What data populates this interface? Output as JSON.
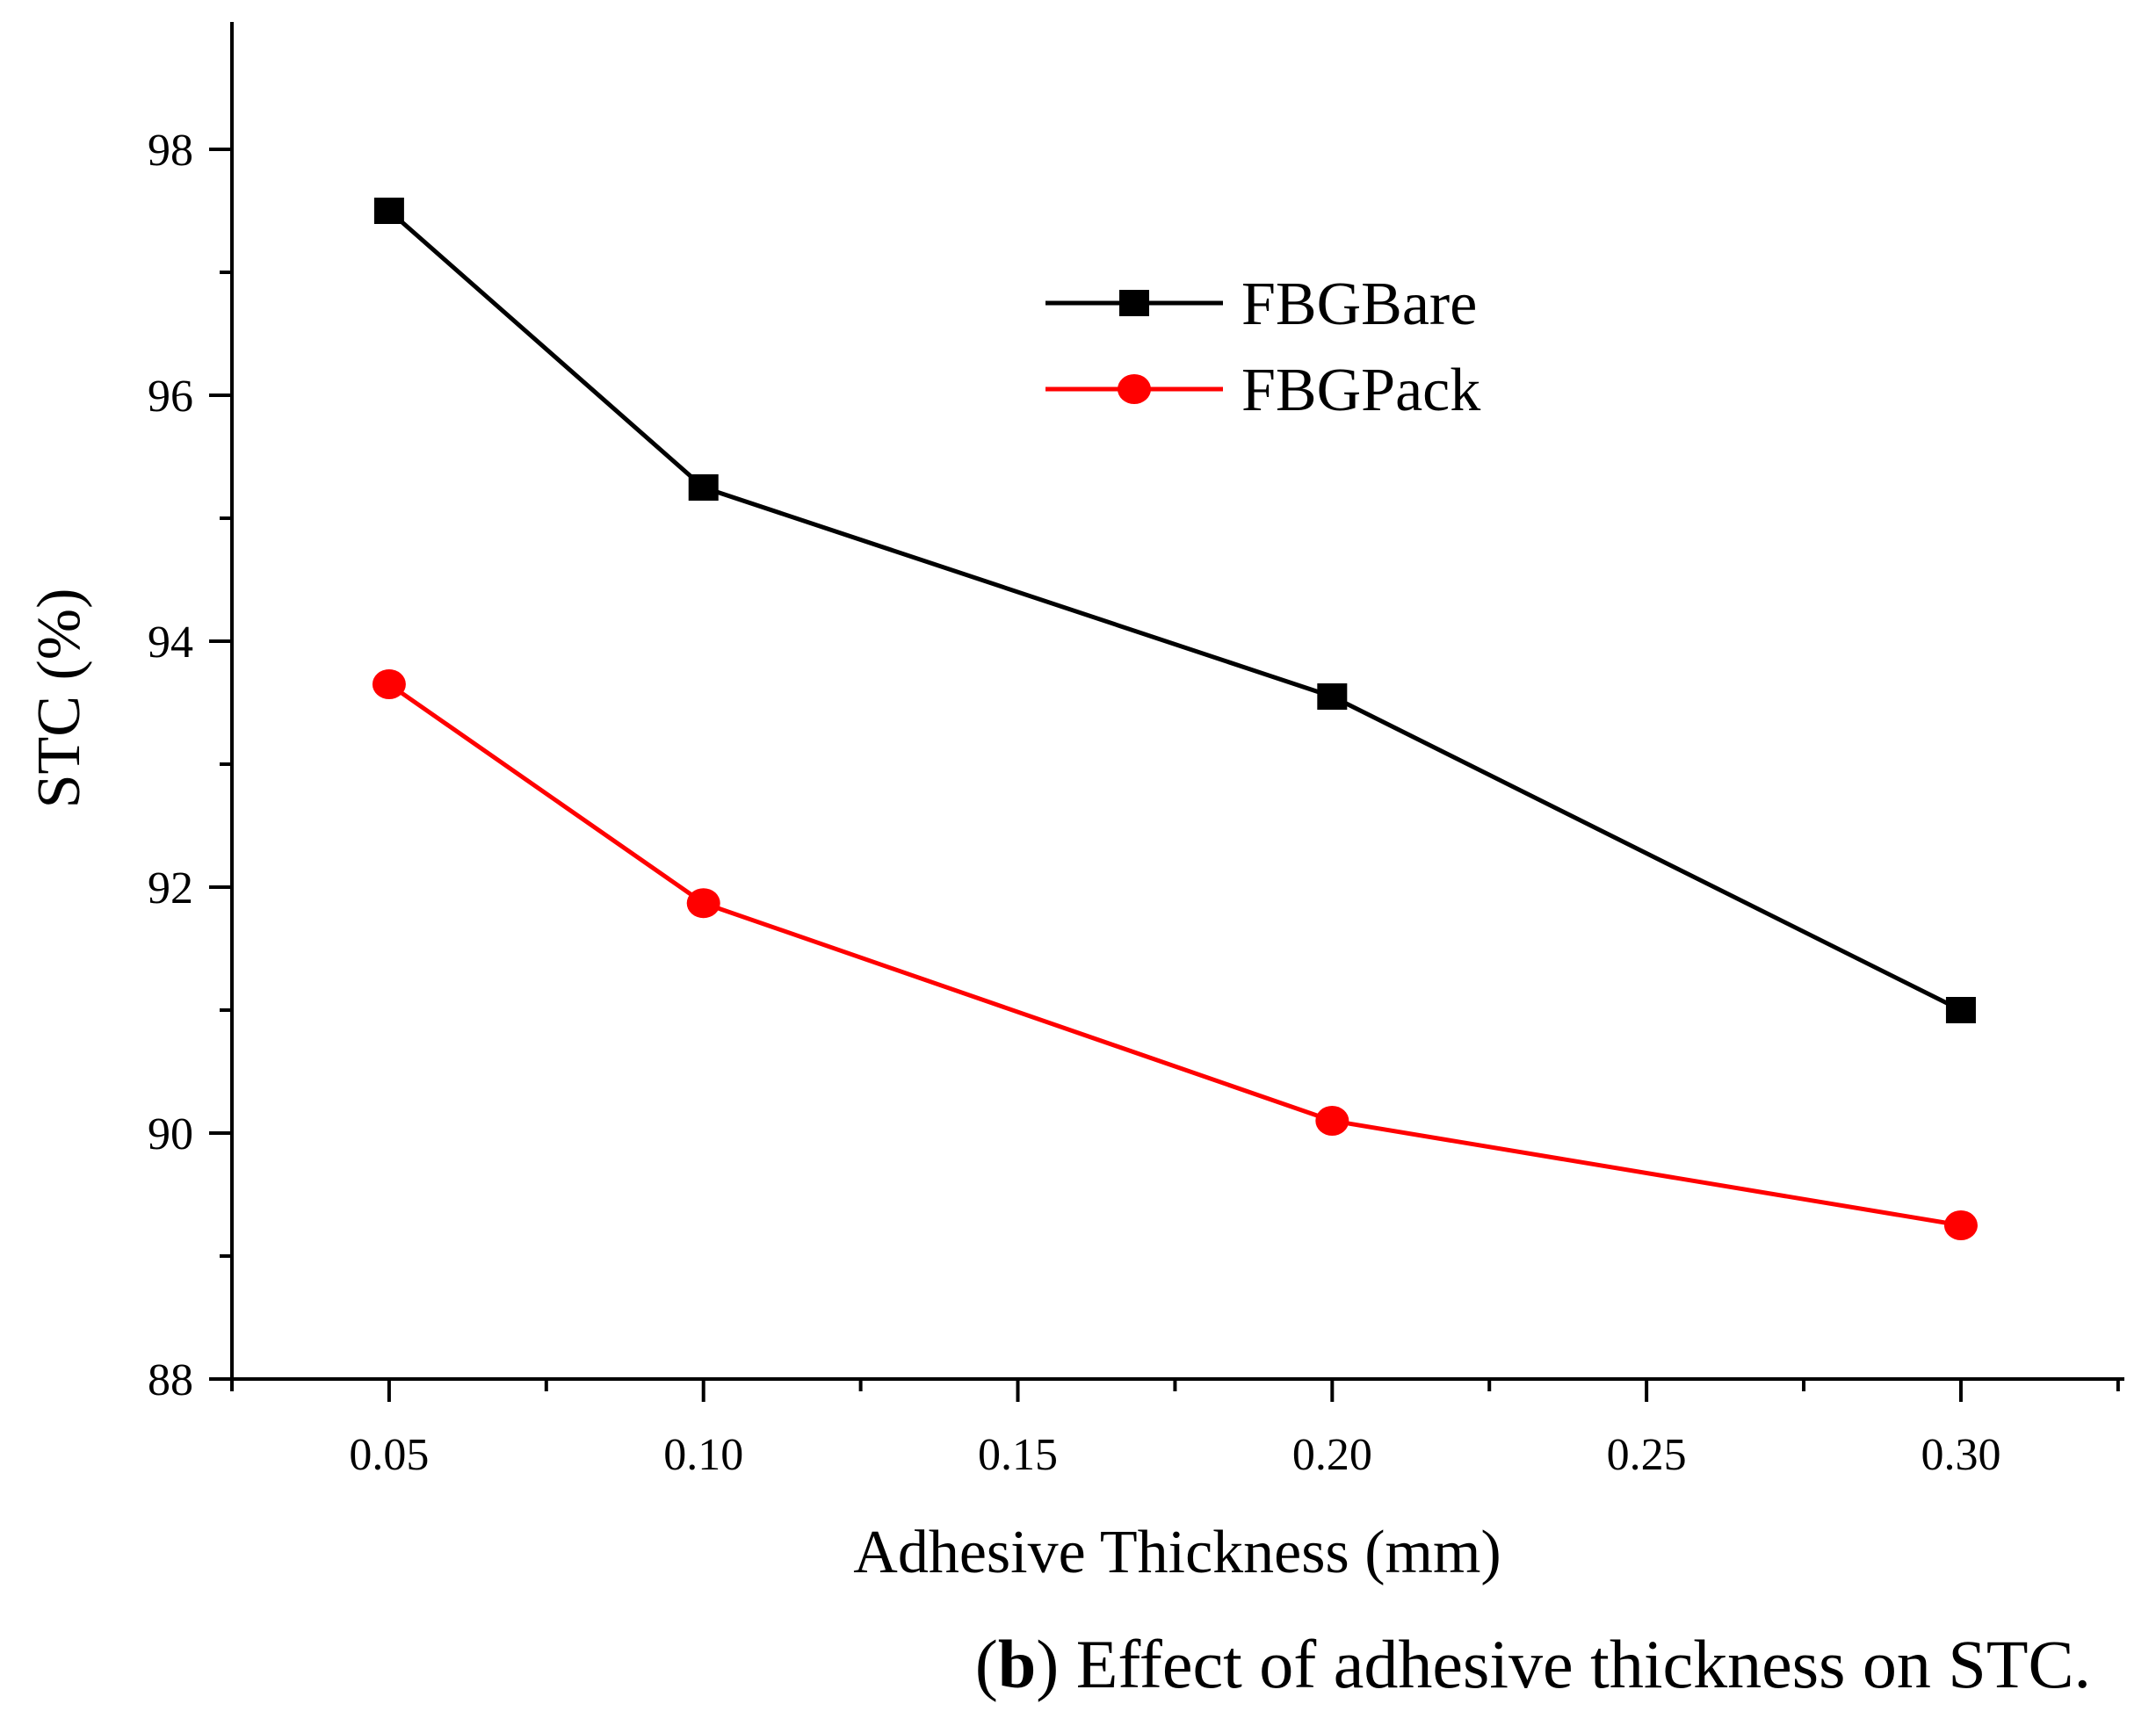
{
  "chart_data": {
    "type": "line",
    "x": [
      0.05,
      0.1,
      0.2,
      0.3
    ],
    "xticks": [
      "0.05",
      "0.10",
      "0.15",
      "0.20",
      "0.25",
      "0.30"
    ],
    "yticks": [
      "88",
      "90",
      "92",
      "94",
      "96",
      "98"
    ],
    "xlim": [
      0.025,
      0.326
    ],
    "ylim": [
      88,
      99
    ],
    "xlabel": "Adhesive Thickness (mm)",
    "ylabel": "STC (%)",
    "legend_position": "top-right",
    "series": [
      {
        "name": "FBGBare",
        "values": [
          97.5,
          95.25,
          93.55,
          91.0
        ],
        "color": "#000000",
        "marker": "square"
      },
      {
        "name": "FBGPack",
        "values": [
          93.65,
          91.87,
          90.1,
          89.25
        ],
        "color": "#ff0000",
        "marker": "circle"
      }
    ]
  },
  "caption": {
    "letter": "b",
    "open_paren": "(",
    "close_paren": ")",
    "text": " Effect of adhesive thickness on STC."
  }
}
